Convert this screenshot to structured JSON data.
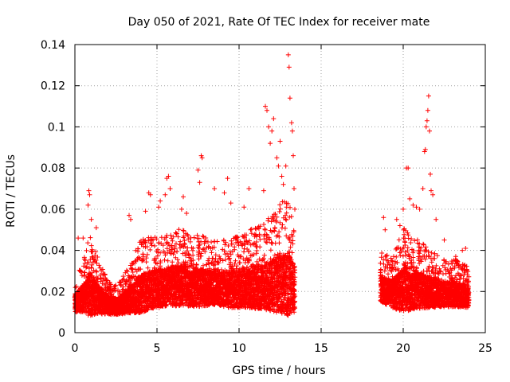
{
  "chart_data": {
    "type": "scatter",
    "title": "Day 050 of 2021, Rate Of TEC Index for receiver mate",
    "xlabel": "GPS time / hours",
    "ylabel": "ROTI / TECUs",
    "xlim": [
      0,
      25
    ],
    "ylim": [
      0,
      0.14
    ],
    "xticks": [
      0,
      5,
      10,
      15,
      20,
      25
    ],
    "yticks": [
      0,
      0.02,
      0.04,
      0.06,
      0.08,
      0.1,
      0.12,
      0.14
    ],
    "grid": true,
    "marker": "+",
    "series_color": "#ff0000",
    "series": [
      {
        "name": "ROTI",
        "gaps": [
          [
            13.4,
            18.6
          ]
        ],
        "envelope": {
          "x": [
            0,
            0.5,
            0.9,
            1.3,
            2.0,
            2.6,
            3.3,
            4.0,
            4.6,
            5.5,
            6.4,
            7.5,
            8.5,
            9.5,
            10.5,
            11.5,
            12.4,
            13.0,
            13.4,
            18.6,
            19.3,
            20.1,
            20.7,
            21.5,
            22.5,
            23.2,
            24.0
          ],
          "base": [
            0.014,
            0.016,
            0.018,
            0.016,
            0.013,
            0.012,
            0.015,
            0.018,
            0.02,
            0.021,
            0.022,
            0.021,
            0.021,
            0.02,
            0.021,
            0.021,
            0.022,
            0.022,
            0.02,
            0.021,
            0.018,
            0.02,
            0.02,
            0.019,
            0.018,
            0.018,
            0.017
          ],
          "spread": [
            0.008,
            0.012,
            0.02,
            0.014,
            0.008,
            0.007,
            0.011,
            0.017,
            0.017,
            0.017,
            0.018,
            0.017,
            0.015,
            0.016,
            0.018,
            0.02,
            0.025,
            0.028,
            0.02,
            0.012,
            0.012,
            0.02,
            0.017,
            0.014,
            0.011,
            0.011,
            0.01
          ]
        },
        "highlights": [
          [
            0.2,
            0.046
          ],
          [
            0.5,
            0.046
          ],
          [
            0.8,
            0.062
          ],
          [
            0.85,
            0.069
          ],
          [
            0.9,
            0.067
          ],
          [
            1.0,
            0.055
          ],
          [
            1.3,
            0.051
          ],
          [
            3.3,
            0.057
          ],
          [
            3.4,
            0.055
          ],
          [
            4.3,
            0.059
          ],
          [
            4.5,
            0.068
          ],
          [
            4.6,
            0.067
          ],
          [
            5.1,
            0.061
          ],
          [
            5.2,
            0.064
          ],
          [
            5.5,
            0.067
          ],
          [
            5.6,
            0.075
          ],
          [
            5.7,
            0.076
          ],
          [
            5.8,
            0.07
          ],
          [
            6.5,
            0.06
          ],
          [
            6.6,
            0.066
          ],
          [
            6.8,
            0.058
          ],
          [
            7.5,
            0.079
          ],
          [
            7.6,
            0.073
          ],
          [
            7.7,
            0.086
          ],
          [
            7.75,
            0.085
          ],
          [
            8.5,
            0.07
          ],
          [
            9.1,
            0.068
          ],
          [
            9.3,
            0.075
          ],
          [
            9.5,
            0.063
          ],
          [
            10.3,
            0.061
          ],
          [
            10.6,
            0.07
          ],
          [
            11.5,
            0.069
          ],
          [
            11.6,
            0.11
          ],
          [
            11.7,
            0.108
          ],
          [
            11.8,
            0.1
          ],
          [
            11.9,
            0.092
          ],
          [
            12.0,
            0.098
          ],
          [
            12.1,
            0.104
          ],
          [
            12.3,
            0.085
          ],
          [
            12.4,
            0.081
          ],
          [
            12.5,
            0.093
          ],
          [
            12.6,
            0.076
          ],
          [
            12.7,
            0.072
          ],
          [
            12.85,
            0.081
          ],
          [
            12.9,
            0.061
          ],
          [
            13.0,
            0.135
          ],
          [
            13.05,
            0.129
          ],
          [
            13.1,
            0.114
          ],
          [
            13.2,
            0.102
          ],
          [
            13.25,
            0.098
          ],
          [
            13.3,
            0.086
          ],
          [
            13.35,
            0.07
          ],
          [
            13.4,
            0.06
          ],
          [
            18.8,
            0.056
          ],
          [
            18.9,
            0.05
          ],
          [
            19.6,
            0.055
          ],
          [
            19.8,
            0.052
          ],
          [
            20.0,
            0.06
          ],
          [
            20.2,
            0.08
          ],
          [
            20.3,
            0.08
          ],
          [
            20.4,
            0.065
          ],
          [
            20.6,
            0.062
          ],
          [
            20.8,
            0.061
          ],
          [
            21.0,
            0.06
          ],
          [
            21.2,
            0.07
          ],
          [
            21.3,
            0.088
          ],
          [
            21.35,
            0.089
          ],
          [
            21.4,
            0.1
          ],
          [
            21.45,
            0.103
          ],
          [
            21.5,
            0.108
          ],
          [
            21.55,
            0.115
          ],
          [
            21.6,
            0.098
          ],
          [
            21.65,
            0.077
          ],
          [
            21.7,
            0.069
          ],
          [
            21.8,
            0.067
          ],
          [
            22.0,
            0.055
          ],
          [
            22.5,
            0.045
          ],
          [
            23.2,
            0.037
          ],
          [
            23.4,
            0.033
          ],
          [
            23.6,
            0.04
          ],
          [
            23.8,
            0.041
          ]
        ]
      }
    ]
  }
}
